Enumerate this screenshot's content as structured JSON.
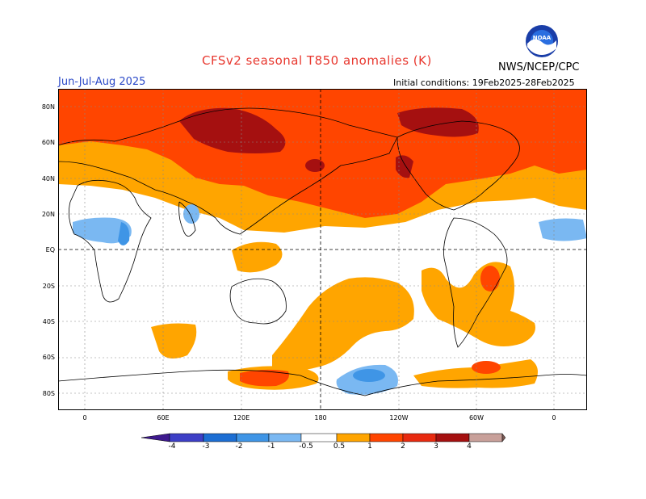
{
  "header": {
    "title": "CFSv2 seasonal T850 anomalies (K)",
    "agency": "NWS/NCEP/CPC",
    "season": "Jun-Jul-Aug 2025",
    "initial_conditions": "Initial conditions: 19Feb2025-28Feb2025",
    "logo_text": "NOAA"
  },
  "map": {
    "lat_labels": [
      "80N",
      "60N",
      "40N",
      "20N",
      "EQ",
      "20S",
      "40S",
      "60S",
      "80S"
    ],
    "lon_labels": [
      "0",
      "60E",
      "120E",
      "180",
      "120W",
      "60W",
      "0"
    ],
    "region": "global, centered on 180"
  },
  "legend": {
    "tick_labels": [
      "-4",
      "-3",
      "-2",
      "-1",
      "-0.5",
      "0.5",
      "1",
      "2",
      "3",
      "4"
    ],
    "colors": {
      "le_-4": "#3e1a8e",
      "-4_-3": "#3d3fc6",
      "-3_-2": "#1c6ed3",
      "-2_-1": "#3f95e6",
      "-1_-0.5": "#7ab8f2",
      "-0.5_0.5": "#ffffff",
      "0.5_1": "#ffa500",
      "1_2": "#ff4500",
      "2_3": "#e82a10",
      "3_4": "#a51010",
      "4_5": "#c8a09a",
      "ge_5": "#7a5a55"
    }
  }
}
